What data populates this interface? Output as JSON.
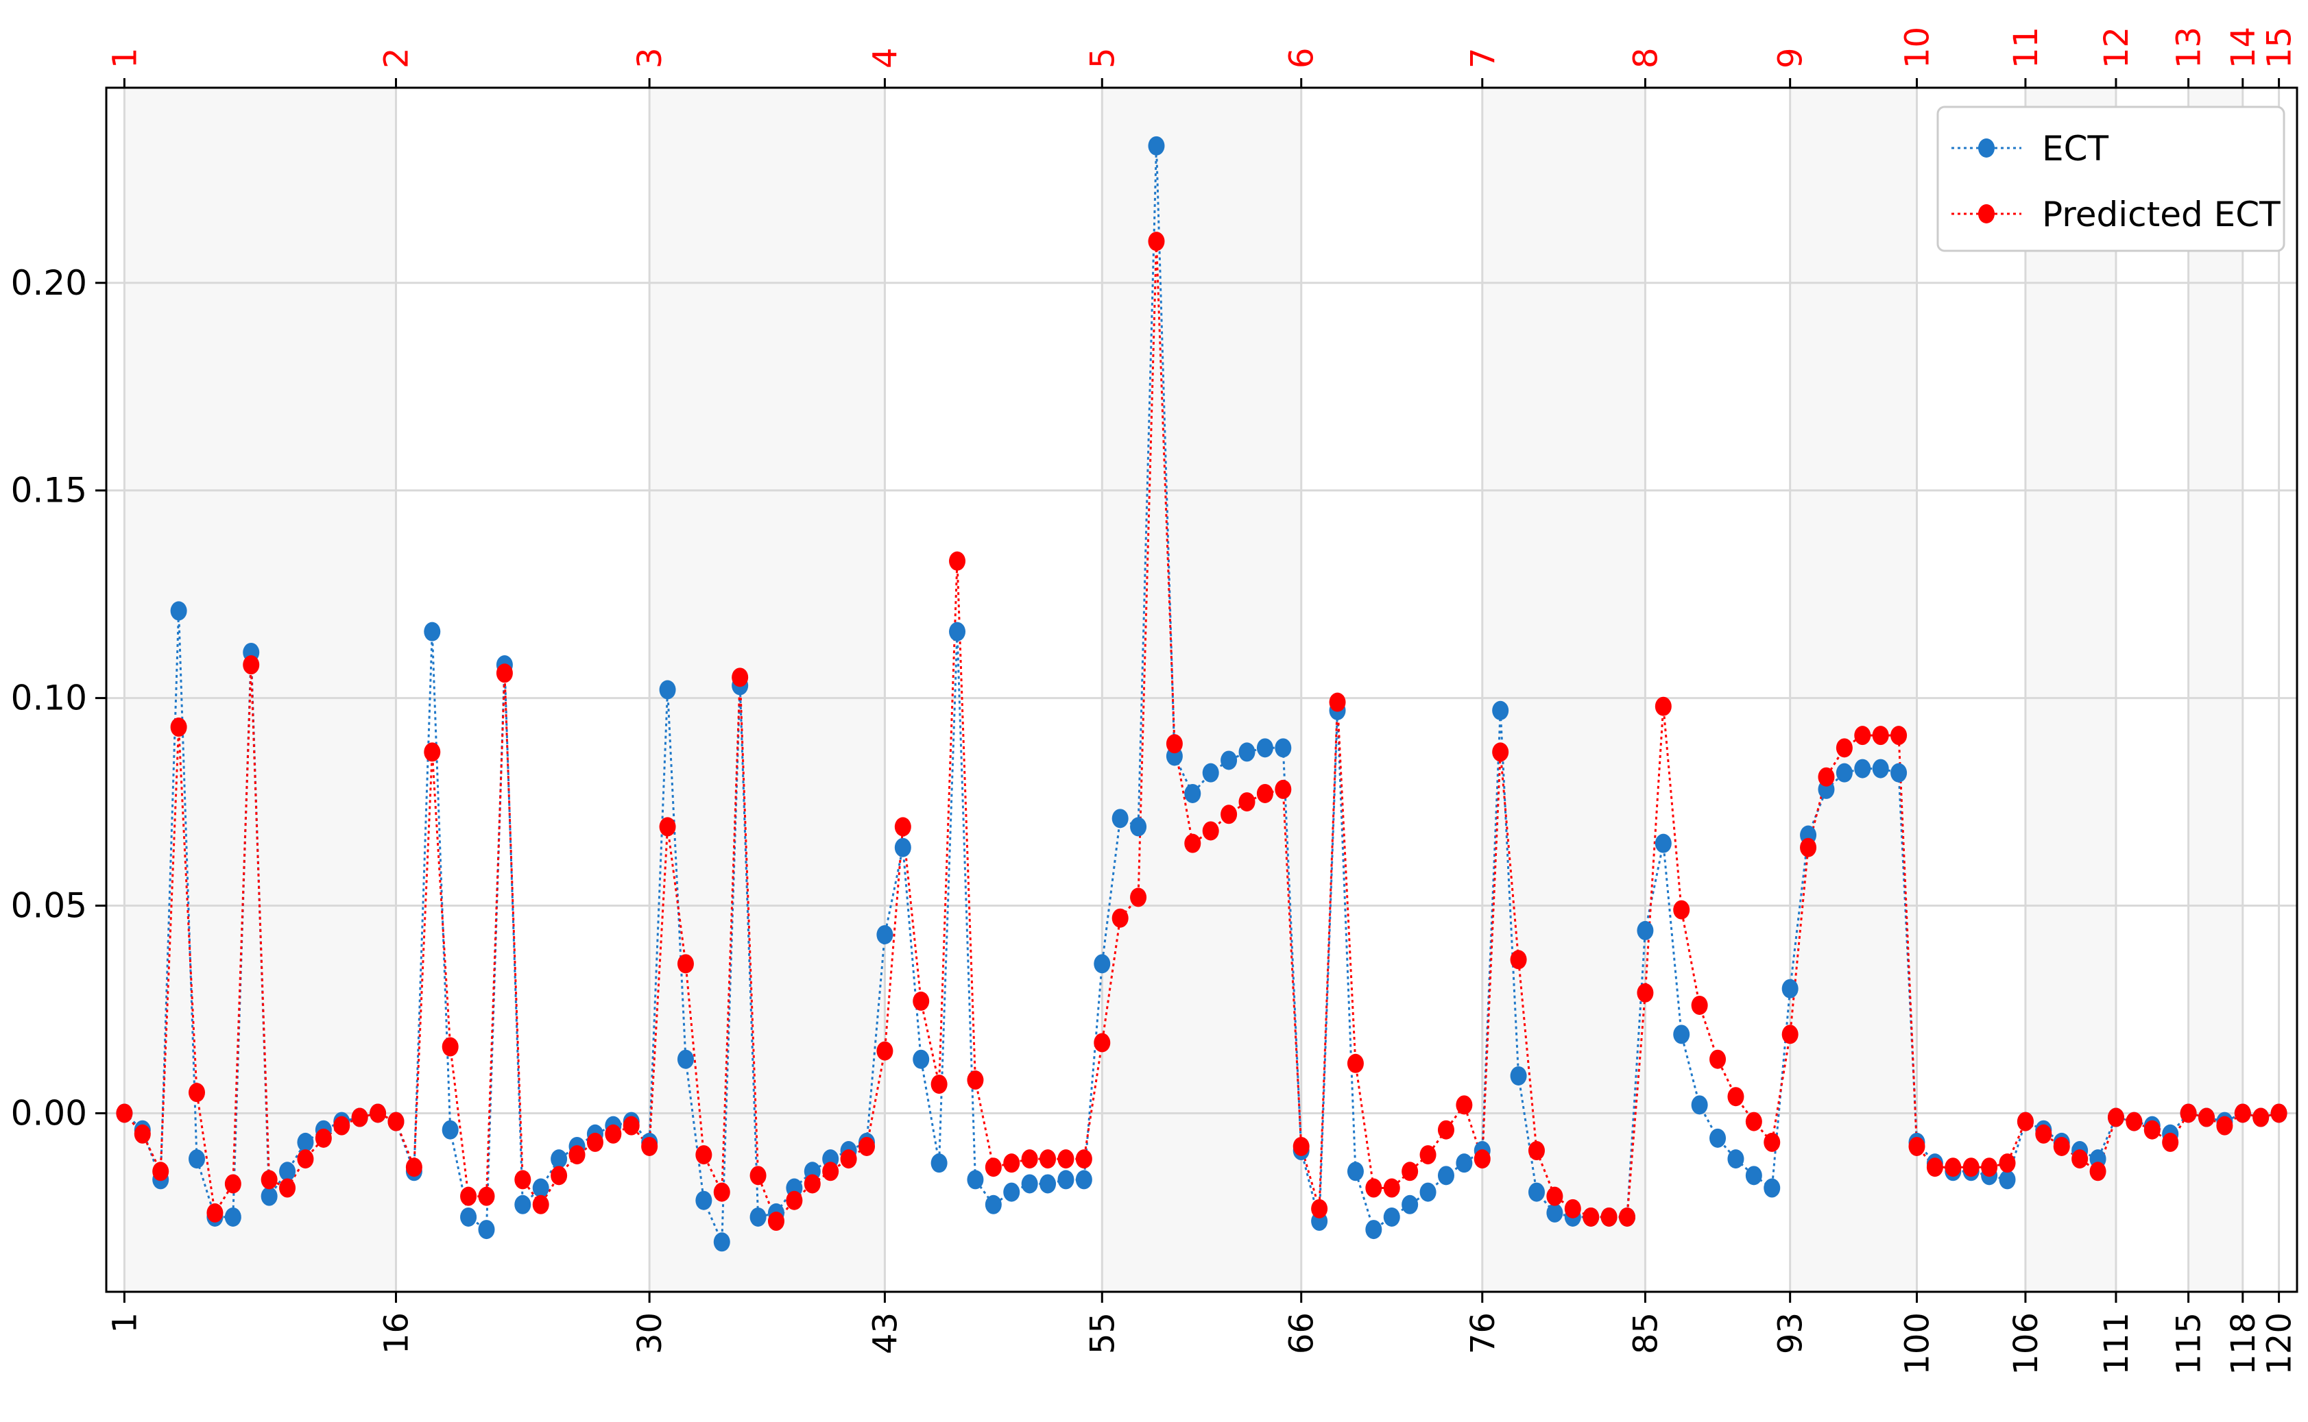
{
  "chart_data": {
    "type": "line",
    "title": "",
    "xlabel": "",
    "ylabel": "",
    "x": [
      1,
      2,
      3,
      4,
      5,
      6,
      7,
      8,
      9,
      10,
      11,
      12,
      13,
      14,
      15,
      16,
      17,
      18,
      19,
      20,
      21,
      22,
      23,
      24,
      25,
      26,
      27,
      28,
      29,
      30,
      31,
      32,
      33,
      34,
      35,
      36,
      37,
      38,
      39,
      40,
      41,
      42,
      43,
      44,
      45,
      46,
      47,
      48,
      49,
      50,
      51,
      52,
      53,
      54,
      55,
      56,
      57,
      58,
      59,
      60,
      61,
      62,
      63,
      64,
      65,
      66,
      67,
      68,
      69,
      70,
      71,
      72,
      73,
      74,
      75,
      76,
      77,
      78,
      79,
      80,
      81,
      82,
      83,
      84,
      85,
      86,
      87,
      88,
      89,
      90,
      91,
      92,
      93,
      94,
      95,
      96,
      97,
      98,
      99,
      100,
      101,
      102,
      103,
      104,
      105,
      106,
      107,
      108,
      109,
      110,
      111,
      112,
      113,
      114,
      115,
      116,
      117,
      118,
      119,
      120
    ],
    "xlim": [
      0,
      121
    ],
    "ylim": [
      -0.043,
      0.247
    ],
    "y_ticks": [
      0.0,
      0.05,
      0.1,
      0.15,
      0.2
    ],
    "y_tick_labels": [
      "0.00",
      "0.05",
      "0.10",
      "0.15",
      "0.20"
    ],
    "x_ticks": [
      1,
      16,
      30,
      43,
      55,
      66,
      76,
      85,
      93,
      100,
      106,
      111,
      115,
      118,
      120
    ],
    "x_tick_labels": [
      "1",
      "16",
      "30",
      "43",
      "55",
      "66",
      "76",
      "85",
      "93",
      "100",
      "106",
      "111",
      "115",
      "118",
      "120"
    ],
    "top_tick_labels": [
      "1",
      "2",
      "3",
      "4",
      "5",
      "6",
      "7",
      "8",
      "9",
      "10",
      "11",
      "12",
      "13",
      "14",
      "15"
    ],
    "top_tick_color": "#ff0000",
    "shaded_bands": [
      [
        1,
        16
      ],
      [
        30,
        43
      ],
      [
        55,
        66
      ],
      [
        76,
        85
      ],
      [
        93,
        100
      ],
      [
        106,
        111
      ],
      [
        115,
        118
      ]
    ],
    "band_color": "#f7f7f7",
    "grid": true,
    "legend_position": "top-right",
    "series": [
      {
        "name": "ECT",
        "color": "#1f78c8",
        "values": [
          0.0,
          -0.004,
          -0.016,
          0.121,
          -0.011,
          -0.025,
          -0.025,
          0.111,
          -0.02,
          -0.014,
          -0.007,
          -0.004,
          -0.002,
          -0.001,
          0.0,
          -0.002,
          -0.014,
          0.116,
          -0.004,
          -0.025,
          -0.028,
          0.108,
          -0.022,
          -0.018,
          -0.011,
          -0.008,
          -0.005,
          -0.003,
          -0.002,
          -0.007,
          0.102,
          0.013,
          -0.021,
          -0.031,
          0.103,
          -0.025,
          -0.024,
          -0.018,
          -0.014,
          -0.011,
          -0.009,
          -0.007,
          0.043,
          0.064,
          0.013,
          -0.012,
          0.116,
          -0.016,
          -0.022,
          -0.019,
          -0.017,
          -0.017,
          -0.016,
          -0.016,
          0.036,
          0.071,
          0.069,
          0.233,
          0.086,
          0.077,
          0.082,
          0.085,
          0.087,
          0.088,
          0.088,
          -0.009,
          -0.026,
          0.097,
          -0.014,
          -0.028,
          -0.025,
          -0.022,
          -0.019,
          -0.015,
          -0.012,
          -0.009,
          0.097,
          0.009,
          -0.019,
          -0.024,
          -0.025,
          -0.025,
          -0.025,
          -0.025,
          0.044,
          0.065,
          0.019,
          0.002,
          -0.006,
          -0.011,
          -0.015,
          -0.018,
          0.03,
          0.067,
          0.078,
          0.082,
          0.083,
          0.083,
          0.082,
          -0.007,
          -0.012,
          -0.014,
          -0.014,
          -0.015,
          -0.016,
          -0.002,
          -0.004,
          -0.007,
          -0.009,
          -0.011,
          -0.001,
          -0.002,
          -0.003,
          -0.005,
          0.0,
          -0.001,
          -0.002,
          0.0,
          -0.001,
          0.0
        ]
      },
      {
        "name": "Predicted ECT",
        "color": "#ff0000",
        "values": [
          0.0,
          -0.005,
          -0.014,
          0.093,
          0.005,
          -0.024,
          -0.017,
          0.108,
          -0.016,
          -0.018,
          -0.011,
          -0.006,
          -0.003,
          -0.001,
          0.0,
          -0.002,
          -0.013,
          0.087,
          0.016,
          -0.02,
          -0.02,
          0.106,
          -0.016,
          -0.022,
          -0.015,
          -0.01,
          -0.007,
          -0.005,
          -0.003,
          -0.008,
          0.069,
          0.036,
          -0.01,
          -0.019,
          0.105,
          -0.015,
          -0.026,
          -0.021,
          -0.017,
          -0.014,
          -0.011,
          -0.008,
          0.015,
          0.069,
          0.027,
          0.007,
          0.133,
          0.008,
          -0.013,
          -0.012,
          -0.011,
          -0.011,
          -0.011,
          -0.011,
          0.017,
          0.047,
          0.052,
          0.21,
          0.089,
          0.065,
          0.068,
          0.072,
          0.075,
          0.077,
          0.078,
          -0.008,
          -0.023,
          0.099,
          0.012,
          -0.018,
          -0.018,
          -0.014,
          -0.01,
          -0.004,
          0.002,
          -0.011,
          0.087,
          0.037,
          -0.009,
          -0.02,
          -0.023,
          -0.025,
          -0.025,
          -0.025,
          0.029,
          0.098,
          0.049,
          0.026,
          0.013,
          0.004,
          -0.002,
          -0.007,
          0.019,
          0.064,
          0.081,
          0.088,
          0.091,
          0.091,
          0.091,
          -0.008,
          -0.013,
          -0.013,
          -0.013,
          -0.013,
          -0.012,
          -0.002,
          -0.005,
          -0.008,
          -0.011,
          -0.014,
          -0.001,
          -0.002,
          -0.004,
          -0.007,
          0.0,
          -0.001,
          -0.003,
          0.0,
          -0.001,
          0.0
        ]
      }
    ]
  }
}
